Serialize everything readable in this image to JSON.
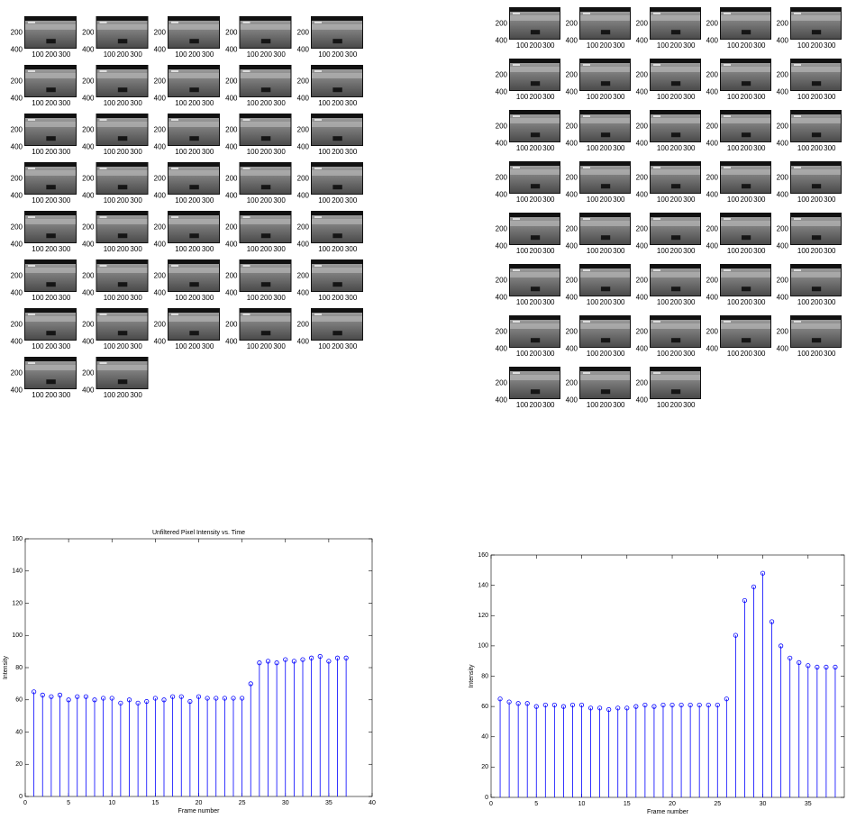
{
  "montages": [
    {
      "yticks": [
        200,
        400
      ],
      "xticks": [
        100,
        200,
        300
      ]
    },
    {
      "yticks": [
        200,
        400
      ],
      "xticks": [
        100,
        200,
        300
      ]
    }
  ],
  "chart_data": [
    {
      "type": "stem",
      "title": "Unfiltered Pixel Intensity vs. Time",
      "x_label": "Frame number",
      "y_label": "Intensity",
      "color": "#0000ff",
      "x": [
        1,
        2,
        3,
        4,
        5,
        6,
        7,
        8,
        9,
        10,
        11,
        12,
        13,
        14,
        15,
        16,
        17,
        18,
        19,
        20,
        21,
        22,
        23,
        24,
        25,
        26,
        27,
        28,
        29,
        30,
        31,
        32,
        33,
        34,
        35,
        36,
        37
      ],
      "values": [
        65,
        63,
        62,
        63,
        60,
        62,
        62,
        60,
        61,
        61,
        58,
        60,
        58,
        59,
        61,
        60,
        62,
        62,
        59,
        62,
        61,
        61,
        61,
        61,
        61,
        70,
        83,
        84,
        83,
        85,
        84,
        85,
        86,
        87,
        84,
        86,
        86
      ],
      "xlim": [
        0,
        40
      ],
      "xticks": [
        0,
        5,
        10,
        15,
        20,
        25,
        30,
        35,
        40
      ],
      "ylim": [
        0,
        160
      ],
      "yticks": [
        0,
        20,
        40,
        60,
        80,
        100,
        120,
        140,
        160
      ]
    },
    {
      "type": "stem",
      "x_label": "Frame number",
      "y_label": "Intensity",
      "color": "#0000ff",
      "x": [
        1,
        2,
        3,
        4,
        5,
        6,
        7,
        8,
        9,
        10,
        11,
        12,
        13,
        14,
        15,
        16,
        17,
        18,
        19,
        20,
        21,
        22,
        23,
        24,
        25,
        26,
        27,
        28,
        29,
        30,
        31,
        32,
        33,
        34,
        35,
        36,
        37,
        38
      ],
      "values": [
        65,
        63,
        62,
        62,
        60,
        61,
        61,
        60,
        61,
        61,
        59,
        59,
        58,
        59,
        59,
        60,
        61,
        60,
        61,
        61,
        61,
        61,
        61,
        61,
        61,
        65,
        107,
        130,
        139,
        148,
        116,
        100,
        92,
        89,
        87,
        86,
        86,
        86
      ],
      "xlim": [
        0,
        39
      ],
      "xticks": [
        0,
        5,
        10,
        15,
        20,
        25,
        30,
        35
      ],
      "ylim": [
        0,
        160
      ],
      "yticks": [
        0,
        20,
        40,
        60,
        80,
        100,
        120,
        140,
        160
      ]
    }
  ]
}
